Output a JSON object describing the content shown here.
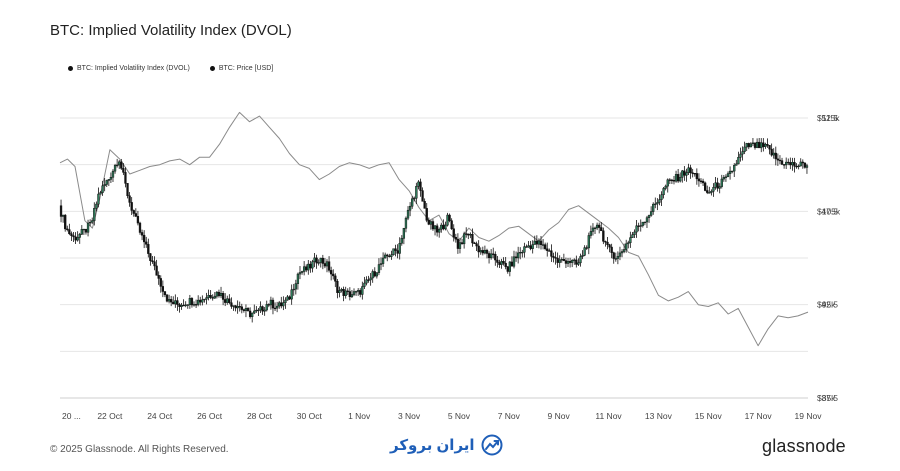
{
  "page": {
    "title": "BTC: Implied Volatility Index (DVOL)",
    "copyright": "© 2025 Glassnode. All Rights Reserved.",
    "watermark_text": "ایران بروکر",
    "brand": "glassnode"
  },
  "colors": {
    "dvol_line": "#8a8a8a",
    "candle_body": "#111111",
    "candle_up_fill": "#2e7d5b",
    "grid": "#e6e6e6",
    "axis_text": "#444444",
    "watermark": "#1f5fb8"
  },
  "icons": {
    "watermark_logo": "trend-arrow-icon"
  },
  "chart_data": {
    "type": "line",
    "title": "BTC: Implied Volatility Index (DVOL)",
    "legend_position": "top-left",
    "legend": [
      "BTC: Implied Volatility Index (DVOL)",
      "BTC: Price [USD]"
    ],
    "grid": true,
    "x_ticks": [
      "20 ...",
      "22 Oct",
      "24 Oct",
      "26 Oct",
      "28 Oct",
      "30 Oct",
      "1 Nov",
      "3 Nov",
      "5 Nov",
      "7 Nov",
      "9 Nov",
      "11 Nov",
      "13 Nov",
      "15 Nov",
      "17 Nov",
      "19 Nov"
    ],
    "x_range_days": [
      20,
      50
    ],
    "y_left": {
      "name": "BTC: Implied Volatility Index (DVOL)",
      "range": [
        37.5,
        52.5
      ],
      "ticks": [
        "37.5",
        "42.5",
        "47.5",
        "52.5"
      ],
      "tick_values": [
        37.5,
        42.5,
        47.5,
        52.5
      ]
    },
    "y_right": {
      "name": "BTC: Price [USD]",
      "range": [
        85000,
        115000
      ],
      "ticks": [
        "$85k",
        "$95k",
        "$105k",
        "$115k"
      ],
      "tick_values": [
        85000,
        95000,
        105000,
        115000
      ]
    },
    "series": [
      {
        "name": "BTC: Implied Volatility Index (DVOL)",
        "axis": "left",
        "style": "line",
        "x": [
          20.0,
          20.3,
          20.6,
          21.0,
          21.3,
          21.6,
          22.0,
          22.4,
          22.8,
          23.2,
          23.6,
          24.0,
          24.4,
          24.8,
          25.2,
          25.6,
          26.0,
          26.4,
          26.8,
          27.2,
          27.6,
          28.0,
          28.4,
          28.8,
          29.2,
          29.6,
          30.0,
          30.4,
          30.8,
          31.2,
          31.6,
          32.0,
          32.4,
          32.8,
          33.2,
          33.6,
          34.0,
          34.4,
          34.8,
          35.2,
          35.6,
          36.0,
          36.4,
          36.8,
          37.2,
          37.6,
          38.0,
          38.4,
          38.8,
          39.2,
          39.6,
          40.0,
          40.4,
          40.8,
          41.2,
          41.6,
          42.0,
          42.4,
          42.8,
          43.2,
          43.6,
          44.0,
          44.4,
          44.8,
          45.2,
          45.6,
          46.0,
          46.4,
          46.8,
          47.2,
          47.6,
          48.0,
          48.4,
          48.8,
          49.2,
          49.6,
          50.0
        ],
        "y": [
          50.1,
          50.3,
          49.9,
          47.0,
          46.6,
          48.2,
          50.8,
          50.3,
          49.5,
          49.7,
          49.9,
          50.0,
          50.2,
          50.3,
          50.0,
          50.4,
          50.4,
          51.1,
          52.0,
          52.8,
          52.3,
          52.6,
          52.0,
          51.4,
          50.6,
          50.0,
          49.8,
          49.2,
          49.5,
          49.9,
          50.1,
          50.0,
          49.8,
          50.0,
          50.1,
          49.2,
          48.6,
          47.7,
          47.0,
          47.3,
          46.3,
          45.9,
          46.6,
          46.1,
          45.9,
          46.2,
          46.6,
          46.7,
          46.3,
          45.9,
          46.5,
          46.9,
          47.6,
          47.8,
          47.4,
          47.0,
          46.6,
          46.1,
          45.3,
          45.1,
          44.1,
          43.0,
          42.7,
          42.9,
          43.2,
          42.5,
          42.4,
          42.6,
          42.0,
          42.3,
          41.3,
          40.3,
          41.2,
          41.9,
          41.8,
          41.9,
          42.1
        ]
      },
      {
        "name": "BTC: Price [USD]",
        "axis": "right",
        "style": "candles",
        "x": [
          20.0,
          20.3,
          20.6,
          21.0,
          21.3,
          21.6,
          22.0,
          22.4,
          22.8,
          23.2,
          23.6,
          24.0,
          24.4,
          24.8,
          25.2,
          25.6,
          26.0,
          26.4,
          26.8,
          27.2,
          27.6,
          28.0,
          28.4,
          28.8,
          29.2,
          29.6,
          30.0,
          30.4,
          30.8,
          31.2,
          31.6,
          32.0,
          32.4,
          32.8,
          33.2,
          33.6,
          34.0,
          34.4,
          34.8,
          35.2,
          35.6,
          36.0,
          36.4,
          36.8,
          37.2,
          37.6,
          38.0,
          38.4,
          38.8,
          39.2,
          39.6,
          40.0,
          40.4,
          40.8,
          41.2,
          41.6,
          42.0,
          42.4,
          42.8,
          43.2,
          43.6,
          44.0,
          44.4,
          44.8,
          45.2,
          45.6,
          46.0,
          46.4,
          46.8,
          47.2,
          47.6,
          48.0,
          48.4,
          48.8,
          49.2,
          49.6,
          50.0
        ],
        "y": [
          105600,
          103100,
          102100,
          102800,
          103700,
          106900,
          108500,
          110800,
          106300,
          103100,
          100400,
          97800,
          95300,
          95000,
          95400,
          95400,
          96000,
          96300,
          95300,
          94900,
          94000,
          94200,
          95200,
          94800,
          95500,
          98400,
          98900,
          100000,
          99100,
          96500,
          96100,
          96200,
          97500,
          99000,
          100300,
          100900,
          104900,
          108000,
          103800,
          102700,
          104300,
          101300,
          102700,
          101000,
          100300,
          99700,
          98800,
          100400,
          101300,
          101600,
          100900,
          99600,
          99800,
          99200,
          101700,
          103900,
          101000,
          100000,
          101700,
          103300,
          104500,
          106100,
          108000,
          108600,
          109400,
          108700,
          106900,
          107800,
          108500,
          110400,
          112000,
          112000,
          111800,
          110500,
          110100,
          109900,
          110000
        ]
      }
    ]
  }
}
